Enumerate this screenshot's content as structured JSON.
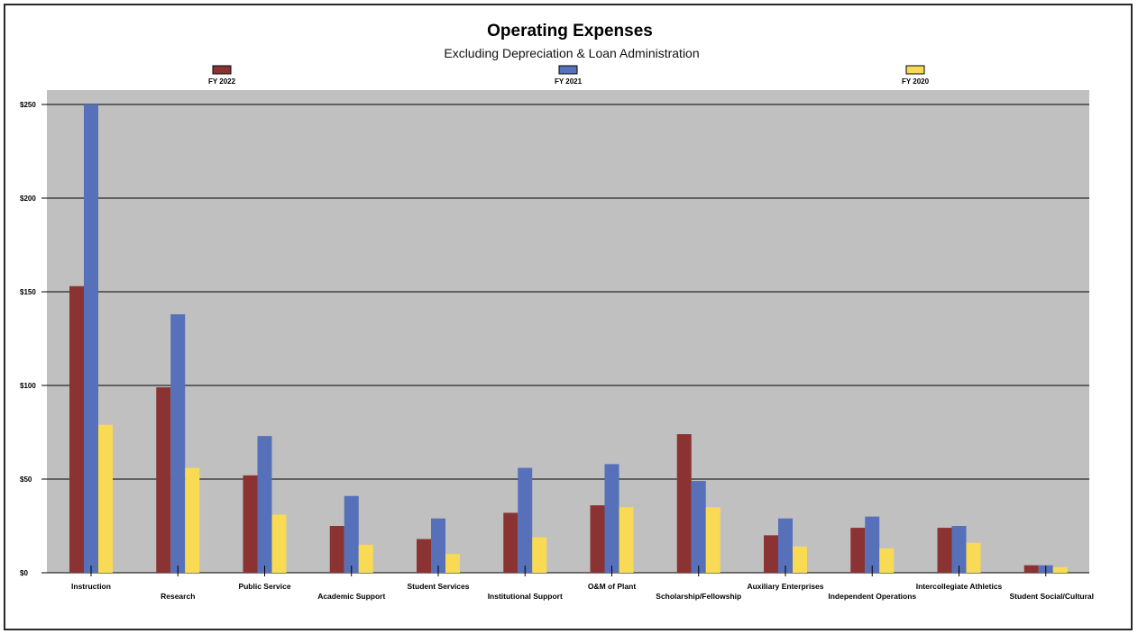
{
  "chart_data": {
    "type": "bar",
    "title": "Operating Expenses",
    "subtitle": "Excluding Depreciation & Loan Administration",
    "xlabel": "",
    "ylabel": "",
    "ylim": [
      0,
      250
    ],
    "yticks": [
      0,
      50,
      100,
      150,
      200,
      250
    ],
    "ytick_labels": [
      "$0",
      "$50",
      "$100",
      "$150",
      "$200",
      "$250"
    ],
    "grid": true,
    "legend_position": "top",
    "categories": [
      "Instruction",
      "Research",
      "Public Service",
      "Academic Support",
      "Student Services",
      "Institutional Support",
      "O&M of Plant",
      "Scholarship/Fellowship",
      "Auxiliary Enterprises",
      "Independent Operations",
      "Intercollegiate Athletics",
      "Student Social/Cultural"
    ],
    "series": [
      {
        "name": "FY 2022",
        "color": "#8B3232",
        "values": [
          153,
          99,
          52,
          25,
          18,
          32,
          36,
          74,
          20,
          24,
          24,
          4
        ]
      },
      {
        "name": "FY 2021",
        "color": "#5670BA",
        "values": [
          250,
          138,
          73,
          41,
          29,
          56,
          58,
          49,
          29,
          30,
          25,
          4
        ]
      },
      {
        "name": "FY 2020",
        "color": "#F8DA54",
        "values": [
          79,
          56,
          31,
          15,
          10,
          19,
          35,
          35,
          14,
          13,
          16,
          3
        ]
      }
    ],
    "plot_background": "#C0C0C0"
  }
}
